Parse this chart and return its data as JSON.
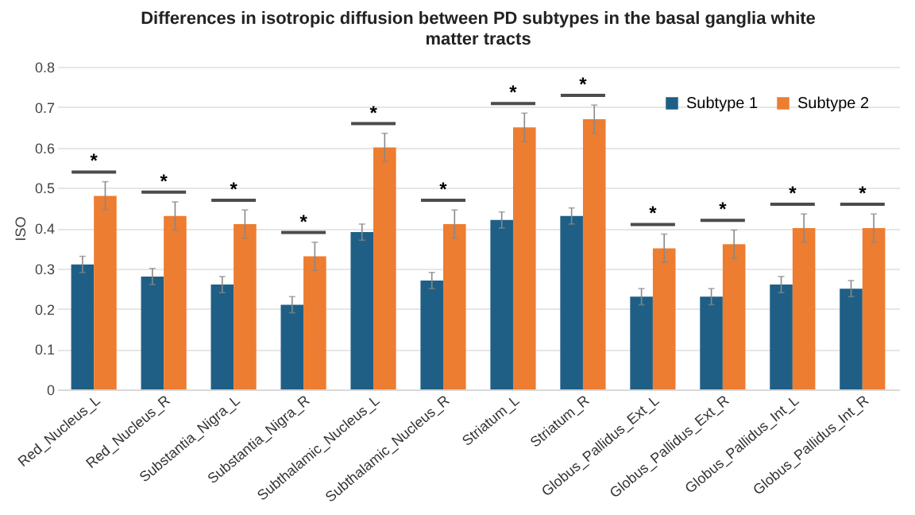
{
  "chart_data": {
    "type": "bar",
    "title": "Differences in isotropic diffusion between PD subtypes in the basal ganglia white matter tracts",
    "ylabel": "ISO",
    "categories": [
      "Red_Nucleus_L",
      "Red_Nucleus_R",
      "Substantia_Nigra_L",
      "Substantia_Nigra_R",
      "Subthalamic_Nucleus_L",
      "Subthalamic_Nucleus_R",
      "Striatum_L",
      "Striatum_R",
      "Globus_Pallidus_Ext_L",
      "Globus_Pallidus_Ext_R",
      "Globus_Pallidus_Int_L",
      "Globus_Pallidus_Int_R"
    ],
    "series": [
      {
        "name": "Subtype 1",
        "color": "#1f5f86",
        "values": [
          0.31,
          0.28,
          0.26,
          0.21,
          0.39,
          0.27,
          0.42,
          0.43,
          0.23,
          0.23,
          0.26,
          0.25
        ],
        "errors": [
          0.02,
          0.02,
          0.02,
          0.02,
          0.02,
          0.02,
          0.02,
          0.02,
          0.02,
          0.02,
          0.02,
          0.02
        ]
      },
      {
        "name": "Subtype 2",
        "color": "#ed7d31",
        "values": [
          0.48,
          0.43,
          0.41,
          0.33,
          0.6,
          0.41,
          0.65,
          0.67,
          0.35,
          0.36,
          0.4,
          0.4
        ],
        "errors": [
          0.035,
          0.035,
          0.035,
          0.035,
          0.035,
          0.035,
          0.035,
          0.035,
          0.035,
          0.035,
          0.035,
          0.035
        ]
      }
    ],
    "ylim": [
      0,
      0.8
    ],
    "yticks": [
      0,
      0.1,
      0.2,
      0.3,
      0.4,
      0.5,
      0.6,
      0.7,
      0.8
    ],
    "grid": "y",
    "legend": "top right",
    "annotations": [
      "*",
      "*",
      "*",
      "*",
      "*",
      "*",
      "*",
      "*",
      "*",
      "*",
      "*",
      "*"
    ]
  }
}
